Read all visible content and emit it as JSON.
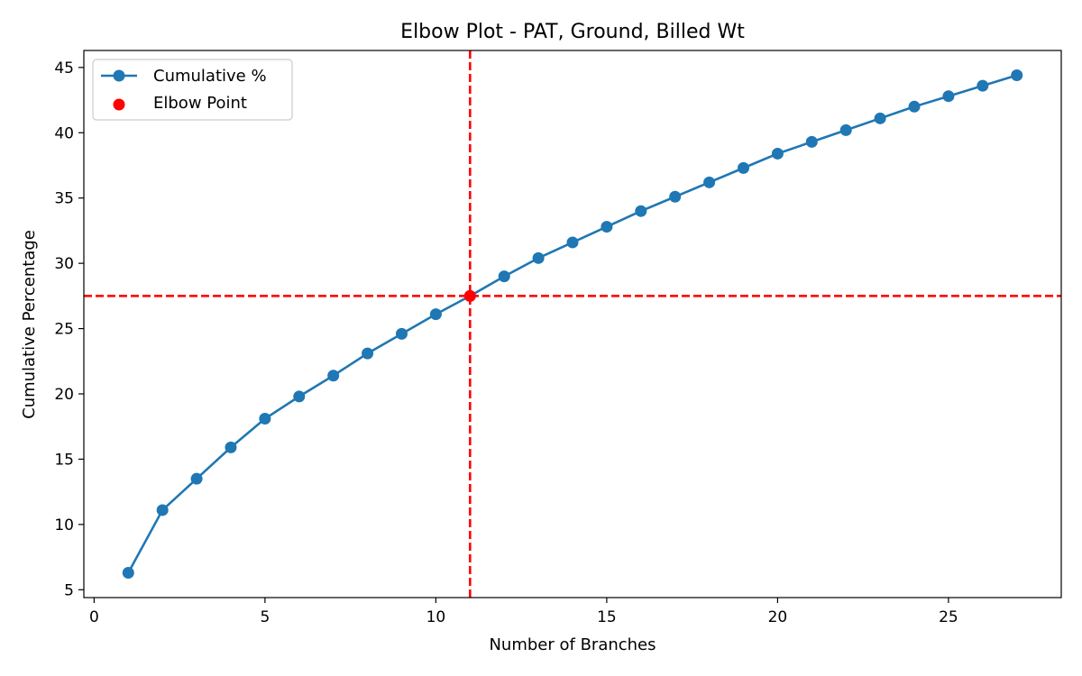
{
  "chart_data": {
    "type": "line",
    "title": "Elbow Plot - PAT, Ground, Billed Wt",
    "xlabel": "Number of Branches",
    "ylabel": "Cumulative Percentage",
    "xlim": [
      -0.3,
      28.3
    ],
    "ylim": [
      4.4,
      46.3
    ],
    "xticks": [
      0,
      5,
      10,
      15,
      20,
      25
    ],
    "yticks": [
      5,
      10,
      15,
      20,
      25,
      30,
      35,
      40,
      45
    ],
    "grid": false,
    "legend_position": "upper left",
    "series": [
      {
        "name": "Cumulative %",
        "color": "#1f77b4",
        "marker": "circle",
        "x": [
          1,
          2,
          3,
          4,
          5,
          6,
          7,
          8,
          9,
          10,
          11,
          12,
          13,
          14,
          15,
          16,
          17,
          18,
          19,
          20,
          21,
          22,
          23,
          24,
          25,
          26,
          27
        ],
        "y": [
          6.3,
          11.1,
          13.5,
          15.9,
          18.1,
          19.8,
          21.4,
          23.1,
          24.6,
          26.1,
          27.5,
          29.0,
          30.4,
          31.6,
          32.8,
          34.0,
          35.1,
          36.2,
          37.3,
          38.4,
          39.3,
          40.2,
          41.1,
          42.0,
          42.8,
          43.6,
          44.4
        ]
      }
    ],
    "elbow_point": {
      "name": "Elbow Point",
      "color": "#ff0000",
      "x": 11,
      "y": 27.5
    },
    "reference_lines": {
      "color": "#ff0000",
      "style": "dashed",
      "vertical_x": 11,
      "horizontal_y": 27.5
    }
  }
}
